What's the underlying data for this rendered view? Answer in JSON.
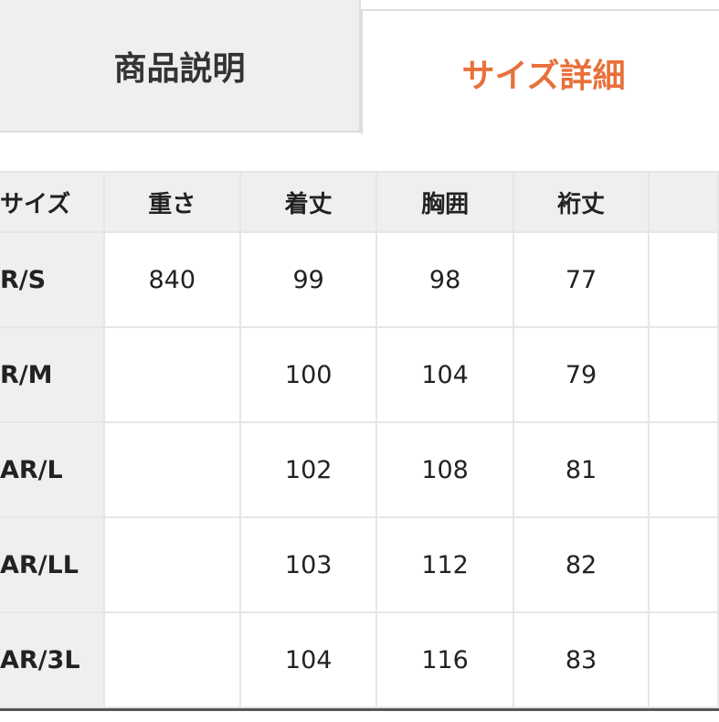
{
  "tabs": [
    {
      "label": "商品説明",
      "active": false
    },
    {
      "label": "サイズ詳細",
      "active": true
    }
  ],
  "colors": {
    "active_tab_text": "#e8703a",
    "header_bg": "#efefef",
    "border": "#e6e6e6"
  },
  "table": {
    "headers": [
      "サイズ",
      "重さ",
      "着丈",
      "胸囲",
      "裄丈",
      ""
    ],
    "rows": [
      [
        "R/S",
        "840",
        "99",
        "98",
        "77",
        ""
      ],
      [
        "R/M",
        "",
        "100",
        "104",
        "79",
        ""
      ],
      [
        "AR/L",
        "",
        "102",
        "108",
        "81",
        ""
      ],
      [
        "AR/LL",
        "",
        "103",
        "112",
        "82",
        ""
      ],
      [
        "AR/3L",
        "",
        "104",
        "116",
        "83",
        ""
      ]
    ]
  }
}
